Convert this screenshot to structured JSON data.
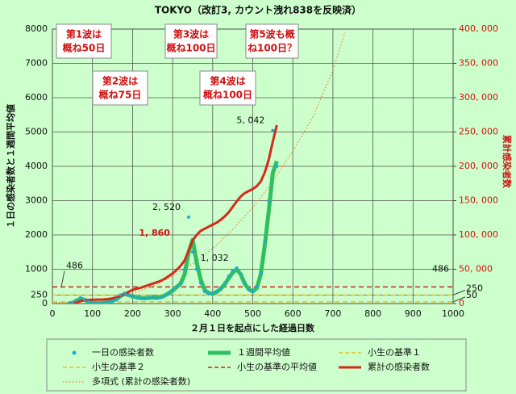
{
  "chart_data": {
    "type": "combo",
    "title": "TOKYO（改訂3, カウント洩れ838を反映済）",
    "ylabel": "１日の感染者数と１週間平均値",
    "y2label": "累計感染者数",
    "xlabel": "２月１日を起点にした経過日数",
    "xlim": [
      0,
      1000
    ],
    "xticks": [
      0,
      100,
      200,
      300,
      400,
      500,
      600,
      700,
      800,
      900,
      1000
    ],
    "ylim": [
      0,
      8000
    ],
    "yticks": [
      0,
      250,
      1000,
      2000,
      3000,
      4000,
      5000,
      6000,
      7000,
      8000
    ],
    "y2lim": [
      0,
      400000
    ],
    "y2ticks": [
      0,
      {
        "value": 50000,
        "label": "50, 000"
      },
      {
        "value": 100000,
        "label": "100, 000"
      },
      {
        "value": 150000,
        "label": "150, 000"
      },
      {
        "value": 200000,
        "label": "200, 000"
      },
      {
        "value": 250000,
        "label": "250, 000"
      },
      {
        "value": 300000,
        "label": "300, 000"
      },
      {
        "value": 350000,
        "label": "350, 000"
      },
      {
        "value": 400000,
        "label": "400, 000"
      }
    ],
    "grid": true,
    "x": [
      40,
      50,
      60,
      70,
      80,
      90,
      100,
      110,
      120,
      130,
      140,
      150,
      160,
      170,
      180,
      190,
      200,
      210,
      220,
      230,
      240,
      250,
      260,
      270,
      280,
      290,
      300,
      310,
      320,
      330,
      340,
      350,
      360,
      370,
      380,
      390,
      400,
      410,
      420,
      430,
      440,
      450,
      460,
      470,
      480,
      490,
      500,
      510,
      520,
      530,
      540,
      550,
      560
    ],
    "series": [
      {
        "name": "一日の感染者数",
        "type": "scatter",
        "color": "#1fa8d8",
        "values": [
          2,
          20,
          100,
          170,
          120,
          60,
          20,
          10,
          10,
          20,
          50,
          80,
          120,
          250,
          300,
          250,
          220,
          180,
          160,
          150,
          170,
          200,
          160,
          180,
          230,
          300,
          400,
          500,
          600,
          1000,
          2520,
          1500,
          1000,
          600,
          350,
          300,
          280,
          350,
          450,
          600,
          800,
          950,
          1032,
          850,
          600,
          400,
          350,
          500,
          900,
          1800,
          3000,
          5042,
          4000
        ],
        "value_labels": [
          null,
          null,
          null,
          null,
          null,
          null,
          null,
          null,
          null,
          null,
          null,
          null,
          null,
          null,
          null,
          null,
          null,
          null,
          null,
          null,
          null,
          null,
          null,
          null,
          null,
          null,
          null,
          null,
          null,
          null,
          "2, 520",
          null,
          null,
          null,
          null,
          null,
          null,
          null,
          null,
          null,
          null,
          null,
          "1, 032",
          null,
          null,
          null,
          null,
          null,
          null,
          null,
          null,
          "5, 042",
          null
        ]
      },
      {
        "name": "１週間平均値",
        "type": "line",
        "color": "#2fbf5f",
        "values": [
          2,
          15,
          80,
          140,
          110,
          50,
          20,
          10,
          12,
          20,
          45,
          80,
          130,
          220,
          280,
          250,
          210,
          180,
          160,
          155,
          165,
          180,
          170,
          185,
          230,
          300,
          380,
          480,
          580,
          850,
          1500,
          1860,
          1200,
          700,
          400,
          300,
          290,
          340,
          430,
          560,
          740,
          900,
          1000,
          850,
          580,
          420,
          350,
          450,
          850,
          1700,
          2700,
          3800,
          4150
        ],
        "value_labels": [
          null,
          null,
          null,
          null,
          null,
          null,
          null,
          null,
          null,
          null,
          null,
          null,
          null,
          null,
          null,
          null,
          null,
          null,
          null,
          null,
          null,
          null,
          null,
          null,
          null,
          null,
          null,
          null,
          null,
          null,
          null,
          "1, 860",
          null,
          null,
          null,
          null,
          null,
          null,
          null,
          null,
          null,
          null,
          null,
          null,
          null,
          null,
          null,
          null,
          null,
          null,
          null,
          null,
          null
        ]
      },
      {
        "name": "小生の基準１",
        "type": "hline",
        "color": "#e8c020",
        "value": 250
      },
      {
        "name": "小生の基準２",
        "type": "hline",
        "color": "#e8c020",
        "value": 50
      },
      {
        "name": "小生の基準の平均値",
        "type": "hline",
        "color": "#cc2020",
        "value": 486,
        "value_label": "486"
      },
      {
        "name": "累計の感染者数",
        "type": "line",
        "axis": "y2",
        "color": "#d42a1a",
        "values": [
          50,
          200,
          1500,
          3500,
          4800,
          5300,
          5600,
          5700,
          5800,
          6000,
          6500,
          7500,
          9000,
          11000,
          14000,
          17000,
          20000,
          21500,
          23000,
          25000,
          27000,
          29000,
          31000,
          33000,
          36000,
          40000,
          44000,
          49000,
          55000,
          63000,
          77000,
          92000,
          100000,
          106000,
          109000,
          112000,
          115000,
          118000,
          122000,
          127000,
          133000,
          141000,
          149000,
          156000,
          161000,
          164000,
          167000,
          171000,
          178000,
          191000,
          210000,
          236000,
          260000
        ]
      },
      {
        "name": "多項式 (累計の感染者数)",
        "type": "poly",
        "axis": "y2",
        "color": "#f08020",
        "x": [
          0,
          50,
          100,
          150,
          200,
          250,
          300,
          350,
          400,
          450,
          500,
          550,
          600,
          650,
          700,
          730
        ],
        "values": [
          1000,
          2000,
          5000,
          9000,
          15000,
          25000,
          40000,
          58000,
          80000,
          108000,
          140000,
          178000,
          222000,
          272000,
          340000,
          395000
        ]
      }
    ],
    "annotations": [
      {
        "lines": [
          "第1波は",
          "概ね50日"
        ]
      },
      {
        "lines": [
          "第2波は",
          "概ね75日"
        ]
      },
      {
        "lines": [
          "第3波は",
          "概ね100日"
        ]
      },
      {
        "lines": [
          "第4波は",
          "概ね100日"
        ]
      },
      {
        "lines": [
          "第5波も概",
          "ね100日？"
        ]
      }
    ]
  }
}
